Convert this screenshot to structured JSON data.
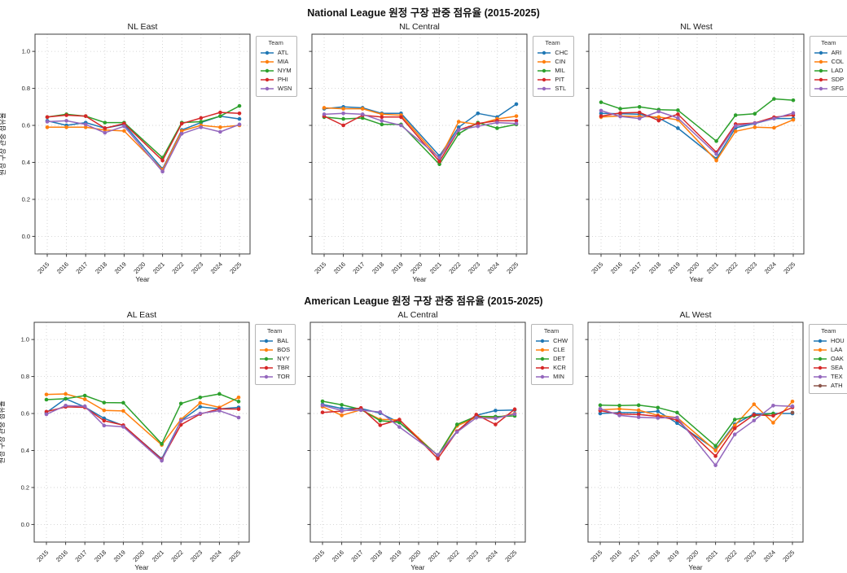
{
  "sections": [
    {
      "title": "National League 원정 구장 관중 점유율 (2015-2025)"
    },
    {
      "title": "American League 원정 구장 관중 점유율 (2015-2025)"
    }
  ],
  "chart_data": [
    {
      "type": "line",
      "title": "NL East",
      "xlabel": "Year",
      "ylabel": "원정 구장 관중 점유율",
      "legend_title": "Team",
      "show_y_tick_labels": true,
      "xticks": [
        2015,
        2016,
        2017,
        2018,
        2019,
        2020,
        2021,
        2022,
        2023,
        2024,
        2025
      ],
      "yticks": [
        0.0,
        0.2,
        0.4,
        0.6,
        0.8,
        1.0
      ],
      "ylim": [
        -0.095,
        1.093
      ],
      "x": [
        2015,
        2016,
        2017,
        2018,
        2019,
        2021,
        2022,
        2023,
        2024,
        2025
      ],
      "note": "no data for 2020",
      "series": [
        {
          "name": "ATL",
          "color": "#1f77b4",
          "values": [
            0.625,
            0.6,
            0.615,
            0.585,
            0.605,
            0.365,
            0.575,
            0.615,
            0.65,
            0.635
          ]
        },
        {
          "name": "MIA",
          "color": "#ff7f0e",
          "values": [
            0.59,
            0.59,
            0.59,
            0.575,
            0.57,
            0.36,
            0.57,
            0.6,
            0.59,
            0.6
          ]
        },
        {
          "name": "NYM",
          "color": "#2ca02c",
          "values": [
            0.645,
            0.66,
            0.65,
            0.615,
            0.615,
            0.425,
            0.615,
            0.62,
            0.65,
            0.705
          ]
        },
        {
          "name": "PHI",
          "color": "#d62728",
          "values": [
            0.645,
            0.655,
            0.65,
            0.585,
            0.61,
            0.41,
            0.61,
            0.64,
            0.67,
            0.665
          ]
        },
        {
          "name": "WSN",
          "color": "#9467bd",
          "values": [
            0.62,
            0.625,
            0.605,
            0.56,
            0.595,
            0.35,
            0.555,
            0.59,
            0.565,
            0.605
          ]
        }
      ]
    },
    {
      "type": "line",
      "title": "NL Central",
      "xlabel": "Year",
      "ylabel": "원정 구장 관중 점유율",
      "legend_title": "Team",
      "show_y_tick_labels": false,
      "xticks": [
        2015,
        2016,
        2017,
        2018,
        2019,
        2020,
        2021,
        2022,
        2023,
        2024,
        2025
      ],
      "yticks": [
        0.0,
        0.2,
        0.4,
        0.6,
        0.8,
        1.0
      ],
      "ylim": [
        -0.095,
        1.093
      ],
      "x": [
        2015,
        2016,
        2017,
        2018,
        2019,
        2021,
        2022,
        2023,
        2024,
        2025
      ],
      "note": "no data for 2020",
      "series": [
        {
          "name": "CHC",
          "color": "#1f77b4",
          "values": [
            0.69,
            0.7,
            0.695,
            0.665,
            0.665,
            0.435,
            0.59,
            0.665,
            0.645,
            0.715
          ]
        },
        {
          "name": "CIN",
          "color": "#ff7f0e",
          "values": [
            0.695,
            0.69,
            0.69,
            0.66,
            0.655,
            0.42,
            0.62,
            0.605,
            0.635,
            0.65
          ]
        },
        {
          "name": "MIL",
          "color": "#2ca02c",
          "values": [
            0.645,
            0.635,
            0.64,
            0.605,
            0.605,
            0.39,
            0.555,
            0.615,
            0.585,
            0.605
          ]
        },
        {
          "name": "PIT",
          "color": "#d62728",
          "values": [
            0.65,
            0.6,
            0.655,
            0.645,
            0.645,
            0.405,
            0.575,
            0.61,
            0.625,
            0.625
          ]
        },
        {
          "name": "STL",
          "color": "#9467bd",
          "values": [
            0.66,
            0.665,
            0.66,
            0.625,
            0.6,
            0.425,
            0.575,
            0.595,
            0.615,
            0.61
          ]
        }
      ]
    },
    {
      "type": "line",
      "title": "NL West",
      "xlabel": "Year",
      "ylabel": "원정 구장 관중 점유율",
      "legend_title": "Team",
      "show_y_tick_labels": false,
      "xticks": [
        2015,
        2016,
        2017,
        2018,
        2019,
        2020,
        2021,
        2022,
        2023,
        2024,
        2025
      ],
      "yticks": [
        0.0,
        0.2,
        0.4,
        0.6,
        0.8,
        1.0
      ],
      "ylim": [
        -0.095,
        1.093
      ],
      "x": [
        2015,
        2016,
        2017,
        2018,
        2019,
        2021,
        2022,
        2023,
        2024,
        2025
      ],
      "note": "no data for 2020",
      "series": [
        {
          "name": "ARI",
          "color": "#1f77b4",
          "values": [
            0.665,
            0.663,
            0.66,
            0.64,
            0.585,
            0.42,
            0.587,
            0.61,
            0.637,
            0.637
          ]
        },
        {
          "name": "COL",
          "color": "#ff7f0e",
          "values": [
            0.645,
            0.651,
            0.648,
            0.645,
            0.63,
            0.41,
            0.568,
            0.59,
            0.587,
            0.63
          ]
        },
        {
          "name": "LAD",
          "color": "#2ca02c",
          "values": [
            0.725,
            0.69,
            0.7,
            0.685,
            0.682,
            0.515,
            0.655,
            0.663,
            0.743,
            0.736
          ]
        },
        {
          "name": "SDP",
          "color": "#d62728",
          "values": [
            0.65,
            0.667,
            0.67,
            0.626,
            0.66,
            0.455,
            0.607,
            0.613,
            0.644,
            0.655
          ]
        },
        {
          "name": "SFG",
          "color": "#9467bd",
          "values": [
            0.68,
            0.648,
            0.637,
            0.675,
            0.64,
            0.445,
            0.597,
            0.612,
            0.637,
            0.667
          ]
        }
      ]
    },
    {
      "type": "line",
      "title": "AL East",
      "xlabel": "Year",
      "ylabel": "원정 구장 관중 점유율",
      "legend_title": "Team",
      "show_y_tick_labels": true,
      "xticks": [
        2015,
        2016,
        2017,
        2018,
        2019,
        2020,
        2021,
        2022,
        2023,
        2024,
        2025
      ],
      "yticks": [
        0.0,
        0.2,
        0.4,
        0.6,
        0.8,
        1.0
      ],
      "ylim": [
        -0.095,
        1.093
      ],
      "x": [
        2015,
        2016,
        2017,
        2018,
        2019,
        2021,
        2022,
        2023,
        2024,
        2025
      ],
      "note": "no data for 2020",
      "series": [
        {
          "name": "BAL",
          "color": "#1f77b4",
          "values": [
            0.605,
            0.68,
            0.635,
            0.574,
            0.535,
            0.355,
            0.561,
            0.636,
            0.625,
            0.633
          ]
        },
        {
          "name": "BOS",
          "color": "#ff7f0e",
          "values": [
            0.703,
            0.706,
            0.677,
            0.617,
            0.614,
            0.43,
            0.568,
            0.657,
            0.633,
            0.687
          ]
        },
        {
          "name": "NYY",
          "color": "#2ca02c",
          "values": [
            0.675,
            0.68,
            0.697,
            0.659,
            0.658,
            0.436,
            0.654,
            0.687,
            0.706,
            0.665
          ]
        },
        {
          "name": "TBR",
          "color": "#d62728",
          "values": [
            0.61,
            0.636,
            0.633,
            0.561,
            0.537,
            0.351,
            0.539,
            0.597,
            0.625,
            0.624
          ]
        },
        {
          "name": "TOR",
          "color": "#9467bd",
          "values": [
            0.596,
            0.643,
            0.639,
            0.535,
            0.528,
            0.345,
            0.561,
            0.6,
            0.615,
            0.578
          ]
        }
      ]
    },
    {
      "type": "line",
      "title": "AL Central",
      "xlabel": "Year",
      "ylabel": "원정 구장 관중 점유율",
      "legend_title": "Team",
      "show_y_tick_labels": false,
      "xticks": [
        2015,
        2016,
        2017,
        2018,
        2019,
        2020,
        2021,
        2022,
        2023,
        2024,
        2025
      ],
      "yticks": [
        0.0,
        0.2,
        0.4,
        0.6,
        0.8,
        1.0
      ],
      "ylim": [
        -0.095,
        1.093
      ],
      "x": [
        2015,
        2016,
        2017,
        2018,
        2019,
        2021,
        2022,
        2023,
        2024,
        2025
      ],
      "note": "no data for 2020",
      "series": [
        {
          "name": "CHW",
          "color": "#1f77b4",
          "values": [
            0.649,
            0.627,
            0.627,
            0.602,
            0.551,
            0.374,
            0.504,
            0.59,
            0.616,
            0.619
          ]
        },
        {
          "name": "CLE",
          "color": "#ff7f0e",
          "values": [
            0.637,
            0.59,
            0.62,
            0.568,
            0.565,
            0.372,
            0.533,
            0.58,
            0.577,
            0.6
          ]
        },
        {
          "name": "DET",
          "color": "#2ca02c",
          "values": [
            0.666,
            0.647,
            0.622,
            0.561,
            0.552,
            0.374,
            0.541,
            0.585,
            0.583,
            0.587
          ]
        },
        {
          "name": "KCR",
          "color": "#d62728",
          "values": [
            0.606,
            0.613,
            0.63,
            0.537,
            0.567,
            0.356,
            0.504,
            0.594,
            0.541,
            0.623
          ]
        },
        {
          "name": "MIN",
          "color": "#9467bd",
          "values": [
            0.644,
            0.616,
            0.618,
            0.608,
            0.527,
            0.376,
            0.5,
            0.577,
            0.574,
            0.597
          ]
        }
      ]
    },
    {
      "type": "line",
      "title": "AL West",
      "xlabel": "Year",
      "ylabel": "원정 구장 관중 점유율",
      "legend_title": "Team",
      "show_y_tick_labels": false,
      "xticks": [
        2015,
        2016,
        2017,
        2018,
        2019,
        2020,
        2021,
        2022,
        2023,
        2024,
        2025
      ],
      "yticks": [
        0.0,
        0.2,
        0.4,
        0.6,
        0.8,
        1.0
      ],
      "ylim": [
        -0.095,
        1.093
      ],
      "x": [
        2015,
        2016,
        2017,
        2018,
        2019,
        2021,
        2022,
        2023,
        2024,
        2025
      ],
      "note": "no data for 2020; OAK ends 2024, ATH 2025 only",
      "series": [
        {
          "name": "HOU",
          "color": "#1f77b4",
          "values": [
            0.6,
            0.605,
            0.605,
            0.612,
            0.548,
            0.405,
            0.542,
            0.598,
            0.6,
            0.6
          ]
        },
        {
          "name": "LAA",
          "color": "#ff7f0e",
          "values": [
            0.62,
            0.625,
            0.618,
            0.59,
            0.578,
            0.4,
            0.535,
            0.65,
            0.55,
            0.665
          ]
        },
        {
          "name": "OAK",
          "color": "#2ca02c",
          "values": [
            0.645,
            0.643,
            0.645,
            0.632,
            0.605,
            0.425,
            0.567,
            0.588,
            0.6,
            null
          ]
        },
        {
          "name": "SEA",
          "color": "#d62728",
          "values": [
            0.615,
            0.597,
            0.595,
            0.585,
            0.565,
            0.37,
            0.52,
            0.593,
            0.588,
            0.633
          ]
        },
        {
          "name": "TEX",
          "color": "#9467bd",
          "values": [
            0.626,
            0.59,
            0.58,
            0.576,
            0.578,
            0.32,
            0.487,
            0.562,
            0.643,
            0.639
          ]
        },
        {
          "name": "ATH",
          "color": "#8c564b",
          "values": [
            null,
            null,
            null,
            null,
            null,
            null,
            null,
            null,
            null,
            0.605
          ]
        }
      ]
    }
  ]
}
